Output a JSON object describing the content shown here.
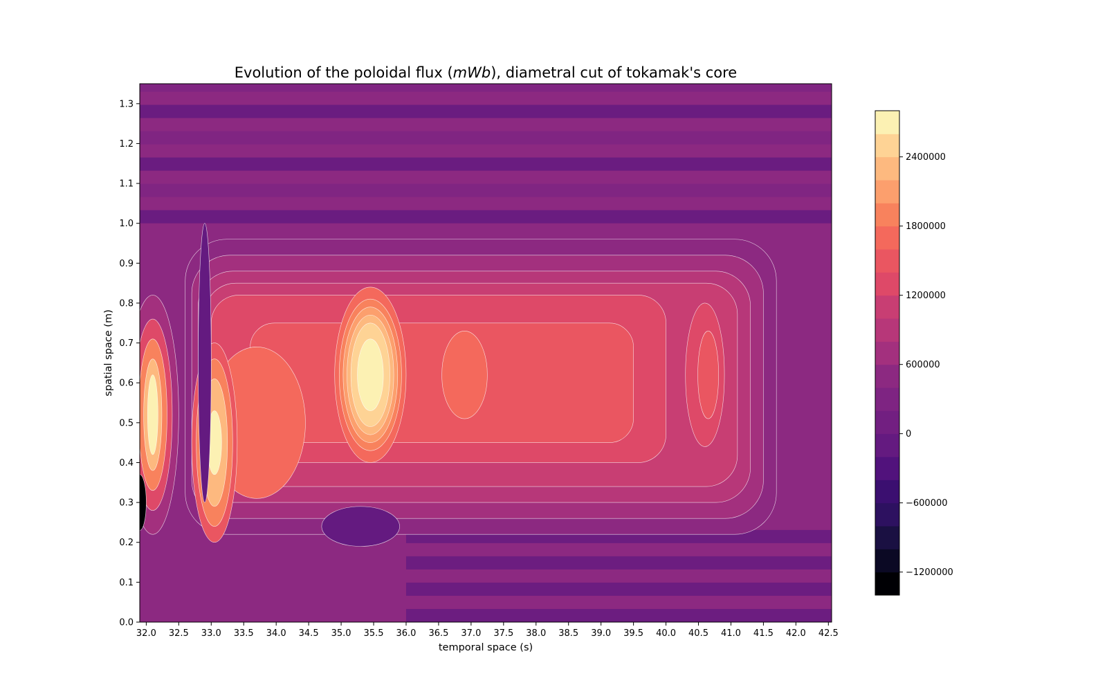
{
  "chart_data": {
    "type": "contour",
    "title_parts": [
      "Evolution of the poloidal flux (",
      "mWb",
      "), diametral cut of tokamak's core"
    ],
    "xlabel": "temporal space (s)",
    "ylabel": "spatial space (m)",
    "xlim": [
      31.9,
      42.55
    ],
    "ylim": [
      0.0,
      1.35
    ],
    "x_ticks": [
      "32.0",
      "32.5",
      "33.0",
      "33.5",
      "34.0",
      "34.5",
      "35.0",
      "35.5",
      "36.0",
      "36.5",
      "37.0",
      "37.5",
      "38.0",
      "38.5",
      "39.0",
      "39.5",
      "40.0",
      "40.5",
      "41.0",
      "41.5",
      "42.0",
      "42.5"
    ],
    "y_ticks": [
      "0.0",
      "0.1",
      "0.2",
      "0.3",
      "0.4",
      "0.5",
      "0.6",
      "0.7",
      "0.8",
      "0.9",
      "1.0",
      "1.1",
      "1.2",
      "1.3"
    ],
    "colormap": "magma",
    "background_color": "#8c2981",
    "contour_line_color": "#ffffff",
    "level_min": -1400000,
    "level_max": 2800000,
    "level_step": 200000,
    "colorbar_ticks": [
      "-1200000",
      "-600000",
      "0",
      "600000",
      "1200000",
      "1800000",
      "2400000"
    ],
    "colorbar_levels": [
      {
        "value": -1400000,
        "color": "#000004"
      },
      {
        "value": -1200000,
        "color": "#0b0924"
      },
      {
        "value": -1000000,
        "color": "#1a1042"
      },
      {
        "value": -800000,
        "color": "#2d1160"
      },
      {
        "value": -600000,
        "color": "#3b0f70"
      },
      {
        "value": -400000,
        "color": "#51127c"
      },
      {
        "value": -200000,
        "color": "#641a80"
      },
      {
        "value": 0,
        "color": "#721f81"
      },
      {
        "value": 200000,
        "color": "#7e2482"
      },
      {
        "value": 400000,
        "color": "#8c2981"
      },
      {
        "value": 600000,
        "color": "#a3307e"
      },
      {
        "value": 800000,
        "color": "#b73779"
      },
      {
        "value": 1000000,
        "color": "#c83e73"
      },
      {
        "value": 1200000,
        "color": "#de4968"
      },
      {
        "value": 1400000,
        "color": "#ea5661"
      },
      {
        "value": 1600000,
        "color": "#f4695c"
      },
      {
        "value": 1800000,
        "color": "#f8825d"
      },
      {
        "value": 2000000,
        "color": "#fc9f6d"
      },
      {
        "value": 2200000,
        "color": "#fdb97f"
      },
      {
        "value": 2400000,
        "color": "#fed395"
      },
      {
        "value": 2600000,
        "color": "#fcf1b3"
      }
    ],
    "regions": [
      {
        "label": "core",
        "x": [
          32.8,
          41.1
        ],
        "y": [
          0.35,
          0.83
        ],
        "value": 1200000
      },
      {
        "label": "upper-ring",
        "x": [
          33.0,
          41.6
        ],
        "y": [
          0.3,
          0.9
        ],
        "value": 800000
      },
      {
        "label": "left-peak",
        "x": [
          32.1,
          32.1
        ],
        "y": [
          0.52,
          0.52
        ],
        "value": 2600000
      },
      {
        "label": "second-peak",
        "x": [
          33.05,
          33.05
        ],
        "y": [
          0.45,
          0.45
        ],
        "value": 2600000
      },
      {
        "label": "central-peak",
        "x": [
          35.45,
          35.45
        ],
        "y": [
          0.62,
          0.62
        ],
        "value": 2400000
      },
      {
        "label": "right-island",
        "x": [
          36.9,
          36.9
        ],
        "y": [
          0.62,
          0.62
        ],
        "value": 1600000
      },
      {
        "label": "far-right-island",
        "x": [
          40.65,
          40.65
        ],
        "y": [
          0.62,
          0.62
        ],
        "value": 1400000
      },
      {
        "label": "left-trough",
        "x": [
          31.9,
          31.9
        ],
        "y": [
          0.3,
          0.3
        ],
        "value": -1400000
      }
    ]
  }
}
